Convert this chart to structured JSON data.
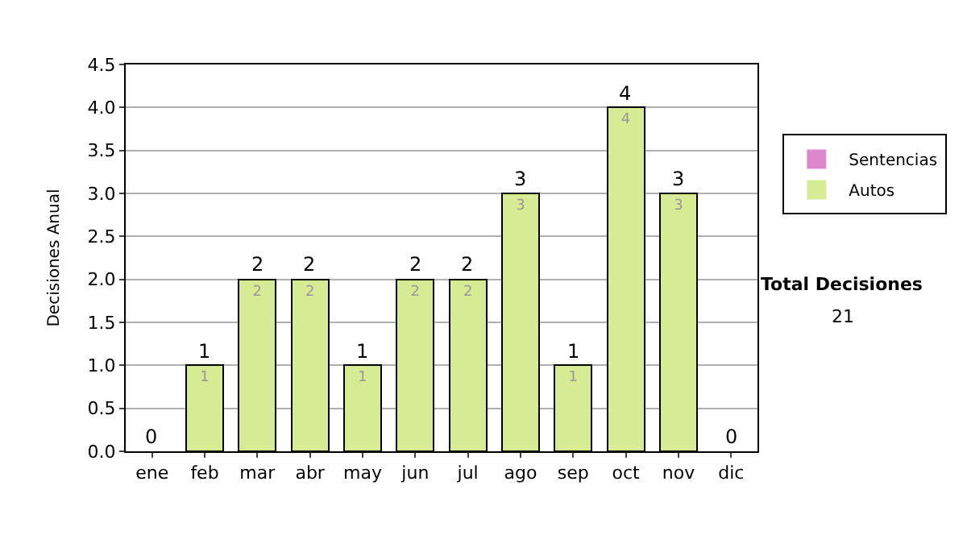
{
  "chart_data": {
    "type": "bar",
    "stacked": true,
    "ylabel": "Decisiones Anual",
    "categories": [
      "ene",
      "feb",
      "mar",
      "abr",
      "may",
      "jun",
      "jul",
      "ago",
      "sep",
      "oct",
      "nov",
      "dic"
    ],
    "series": [
      {
        "name": "Sentencias",
        "color": "#dd88cc",
        "values": [
          0,
          0,
          0,
          0,
          0,
          0,
          0,
          0,
          0,
          0,
          0,
          0
        ]
      },
      {
        "name": "Autos",
        "color": "#d6eb94",
        "values": [
          0,
          1,
          2,
          2,
          1,
          2,
          2,
          3,
          1,
          4,
          3,
          0
        ],
        "value_labels": [
          null,
          "1",
          "2",
          "2",
          "1",
          "2",
          "2",
          "3",
          "1",
          "4",
          "3",
          null
        ]
      }
    ],
    "totals": [
      "0",
      "1",
      "2",
      "2",
      "1",
      "2",
      "2",
      "3",
      "1",
      "4",
      "3",
      "0"
    ],
    "ylim": [
      0,
      4.5
    ],
    "yticks": [
      {
        "value": 0,
        "label": "0.0"
      },
      {
        "value": 0.5,
        "label": "0.5"
      },
      {
        "value": 1,
        "label": "1.0"
      },
      {
        "value": 1.5,
        "label": "1.5"
      },
      {
        "value": 2,
        "label": "2.0"
      },
      {
        "value": 2.5,
        "label": "2.5"
      },
      {
        "value": 3,
        "label": "3.0"
      },
      {
        "value": 3.5,
        "label": "3.5"
      },
      {
        "value": 4,
        "label": "4.0"
      },
      {
        "value": 4.5,
        "label": "4.5"
      }
    ],
    "grid": "y",
    "legend": "right",
    "annotations": [
      "Total Decisiones",
      "21"
    ]
  }
}
